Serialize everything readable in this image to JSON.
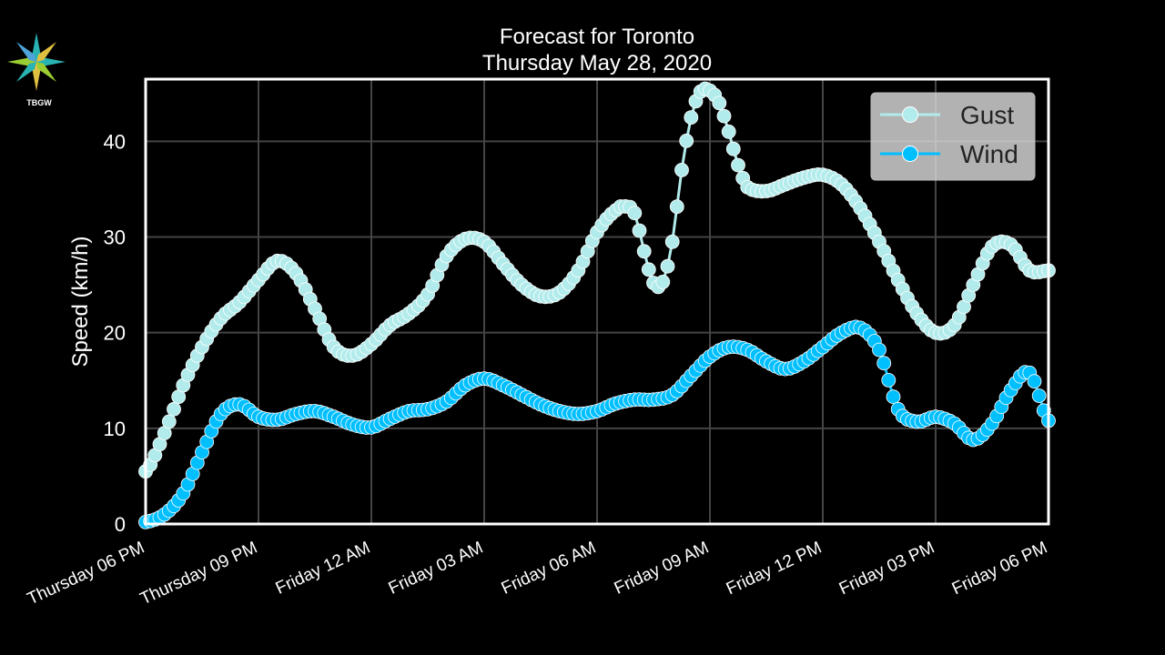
{
  "logo": {
    "icon": "compass-star-logo",
    "text": "TBGW"
  },
  "chart_data": {
    "type": "line",
    "title": [
      "Forecast for Toronto",
      "Thursday May 28, 2020"
    ],
    "xlabel": "",
    "ylabel": "Speed (km/h)",
    "xlim_hours": [
      0,
      24
    ],
    "ylim": [
      0,
      46.5
    ],
    "yticks": [
      0,
      10,
      20,
      30,
      40
    ],
    "xticks": [
      {
        "hour": 0,
        "label": "Thursday 06 PM"
      },
      {
        "hour": 3,
        "label": "Thursday 09 PM"
      },
      {
        "hour": 6,
        "label": "Friday 12 AM"
      },
      {
        "hour": 9,
        "label": "Friday 03 AM"
      },
      {
        "hour": 12,
        "label": "Friday 06 AM"
      },
      {
        "hour": 15,
        "label": "Friday 09 AM"
      },
      {
        "hour": 18,
        "label": "Friday 12 PM"
      },
      {
        "hour": 21,
        "label": "Friday 03 PM"
      },
      {
        "hour": 24,
        "label": "Friday 06 PM"
      }
    ],
    "grid": true,
    "legend_position": "top-right",
    "series": [
      {
        "name": "Gust",
        "color": "#b2ebeb",
        "x_hours": [
          0,
          0.5,
          1,
          1.5,
          2,
          2.5,
          3,
          3.5,
          4,
          4.5,
          5,
          5.5,
          6,
          6.5,
          7,
          7.5,
          8,
          8.5,
          9,
          9.5,
          10,
          10.5,
          11,
          11.5,
          12,
          12.5,
          12.75,
          13,
          13.25,
          13.5,
          13.75,
          14,
          14.25,
          14.5,
          14.75,
          15,
          15.25,
          15.5,
          15.75,
          16,
          16.5,
          17,
          17.5,
          18,
          18.5,
          19,
          19.5,
          20,
          20.5,
          21,
          21.5,
          22,
          22.5,
          23,
          23.5,
          24
        ],
        "values": [
          5.5,
          9.5,
          14.5,
          18.5,
          21.5,
          23.2,
          25.5,
          27.5,
          26.2,
          22.5,
          18.5,
          17.6,
          18.8,
          20.8,
          22,
          24,
          28,
          29.8,
          29.5,
          27.2,
          25,
          23.8,
          24.2,
          26.5,
          30.5,
          32.8,
          33.2,
          32.5,
          28.5,
          25.2,
          25.3,
          29.5,
          37,
          42.5,
          45.2,
          45.3,
          44,
          41,
          37.5,
          35.2,
          34.8,
          35.5,
          36.2,
          36.5,
          35.5,
          33,
          29.5,
          25.5,
          22,
          20,
          20.8,
          25,
          29,
          29.2,
          26.5,
          26.5
        ]
      },
      {
        "name": "Wind",
        "color": "#00bfff",
        "x_hours": [
          0,
          0.5,
          1,
          1.5,
          2,
          2.5,
          3,
          3.5,
          4,
          4.5,
          5,
          5.5,
          6,
          6.5,
          7,
          7.5,
          8,
          8.5,
          9,
          9.5,
          10,
          10.5,
          11,
          11.5,
          12,
          12.5,
          13,
          13.5,
          14,
          14.5,
          15,
          15.5,
          16,
          16.5,
          17,
          17.5,
          18,
          18.5,
          19,
          19.5,
          20,
          20.5,
          21,
          21.5,
          22,
          22.5,
          23,
          23.5,
          24
        ],
        "values": [
          0.2,
          1,
          3.2,
          7.5,
          11.5,
          12.5,
          11.2,
          10.9,
          11.5,
          11.8,
          11.2,
          10.4,
          10.1,
          11,
          11.8,
          12,
          12.8,
          14.5,
          15.2,
          14.5,
          13.5,
          12.5,
          11.8,
          11.5,
          11.8,
          12.6,
          13,
          13,
          13.5,
          15.5,
          17.5,
          18.5,
          18.2,
          17,
          16.2,
          17,
          18.5,
          20,
          20.5,
          18.2,
          12,
          10.7,
          11.2,
          10.5,
          8.8,
          10.5,
          14,
          15.8,
          10.8
        ]
      }
    ]
  }
}
